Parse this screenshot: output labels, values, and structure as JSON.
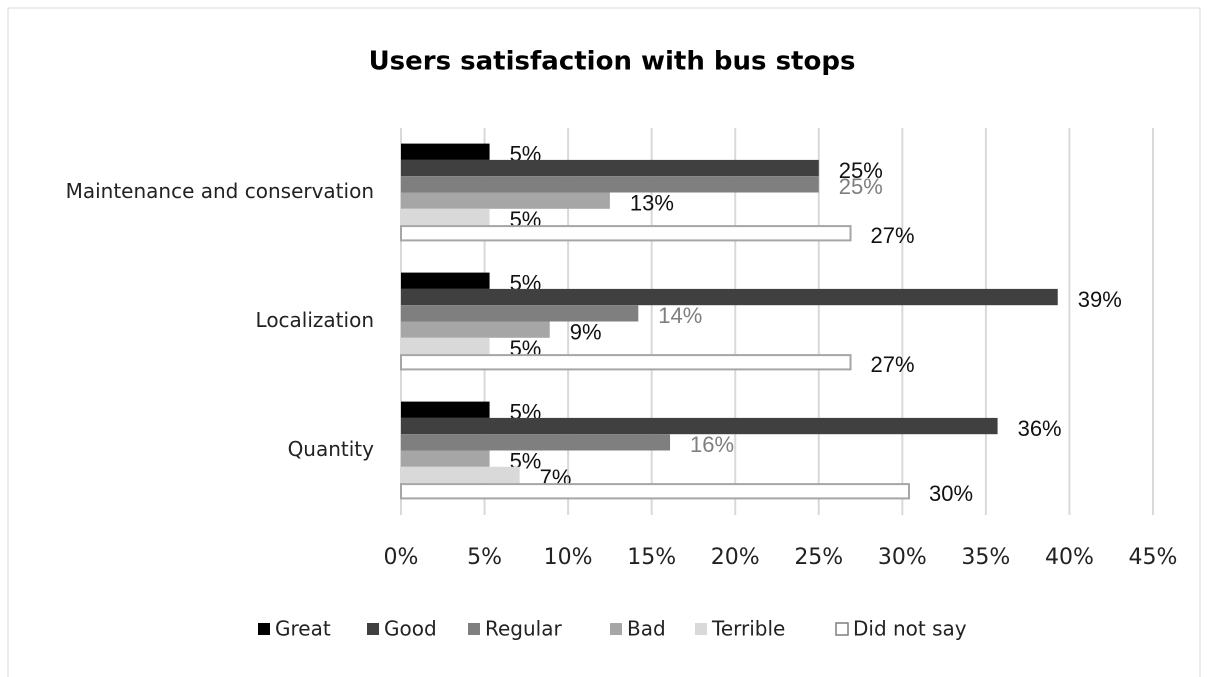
{
  "chart_data": {
    "type": "bar",
    "orientation": "horizontal",
    "title": "Users satisfaction with bus stops",
    "categories": [
      "Maintenance and conservation",
      "Localization",
      "Quantity"
    ],
    "series": [
      {
        "name": "Great",
        "color": "#000000",
        "values": [
          5.3,
          5.3,
          5.3
        ],
        "value_labels": [
          "5%",
          "5%",
          "5%"
        ]
      },
      {
        "name": "Good",
        "color": "#404040",
        "values": [
          25.0,
          39.3,
          35.7
        ],
        "value_labels": [
          "25%",
          "39%",
          "36%"
        ]
      },
      {
        "name": "Regular",
        "color": "#7f7f7f",
        "values": [
          25.0,
          14.2,
          16.1
        ],
        "value_labels": [
          "25%",
          "14%",
          "16%"
        ]
      },
      {
        "name": "Bad",
        "color": "#a6a6a6",
        "values": [
          12.5,
          8.9,
          5.3
        ],
        "value_labels": [
          "13%",
          "9%",
          "5%"
        ]
      },
      {
        "name": "Terrible",
        "color": "#d9d9d9",
        "values": [
          5.3,
          5.3,
          7.1
        ],
        "value_labels": [
          "5%",
          "5%",
          "7%"
        ]
      },
      {
        "name": "Did not say",
        "color": "#ffffff",
        "values": [
          26.9,
          26.9,
          30.4
        ],
        "value_labels": [
          "27%",
          "27%",
          "30%"
        ]
      }
    ],
    "xlim": [
      0,
      45
    ],
    "xticks": [
      {
        "value": 0,
        "label": "0%"
      },
      {
        "value": 5,
        "label": "5%"
      },
      {
        "value": 10,
        "label": "10%"
      },
      {
        "value": 15,
        "label": "15%"
      },
      {
        "value": 20,
        "label": "20%"
      },
      {
        "value": 25,
        "label": "25%"
      },
      {
        "value": 30,
        "label": "30%"
      },
      {
        "value": 35,
        "label": "35%"
      },
      {
        "value": 40,
        "label": "40%"
      },
      {
        "value": 45,
        "label": "45%"
      }
    ],
    "grid": true,
    "legend": "bottom"
  }
}
